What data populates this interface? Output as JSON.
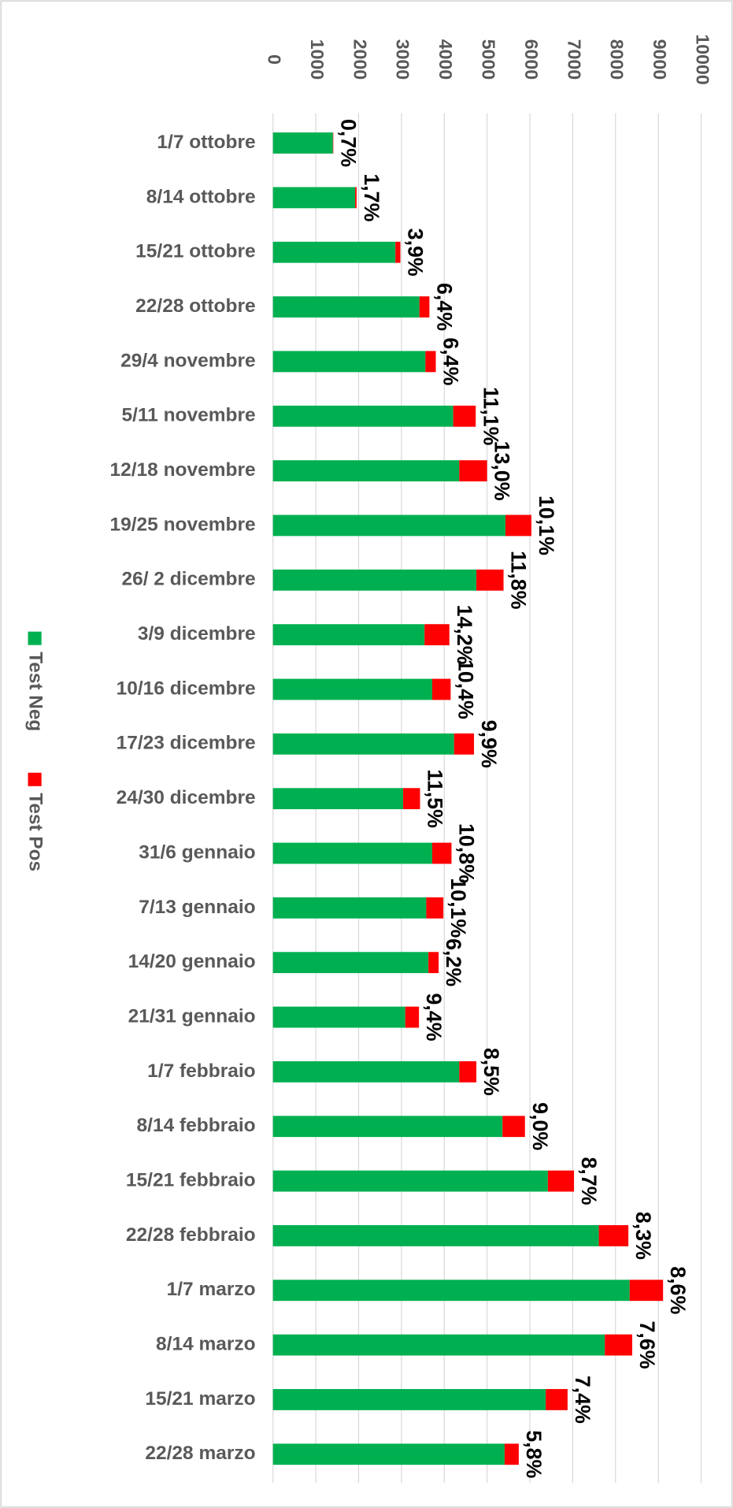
{
  "chart_data": {
    "type": "stacked_barh",
    "categories": [
      "1/7 ottobre",
      "8/14 ottobre",
      "15/21 ottobre",
      "22/28 ottobre",
      "29/4 novembre",
      "5/11 novembre",
      "12/18 novembre",
      "19/25 novembre",
      "26/ 2 dicembre",
      "3/9 dicembre",
      "10/16 dicembre",
      "17/23 dicembre",
      "24/30 dicembre",
      "31/6 gennaio",
      "7/13 gennaio",
      "14/20 gennaio",
      "21/31 gennaio",
      "1/7 febbraio",
      "8/14 febbraio",
      "15/21 febbraio",
      "22/28 febbraio",
      "1/7 marzo",
      "8/14 marzo",
      "15/21 marzo",
      "22/28 marzo"
    ],
    "series": [
      {
        "name": "Test Neg",
        "color": "#00b050",
        "values": [
          1400,
          1920,
          2860,
          3420,
          3560,
          4210,
          4350,
          5430,
          4750,
          3540,
          3720,
          4230,
          3040,
          3720,
          3580,
          3630,
          3090,
          4350,
          5360,
          6420,
          7610,
          8330,
          7750,
          6370,
          5410
        ]
      },
      {
        "name": "Test Pos",
        "color": "#ff0000",
        "values": [
          10,
          33,
          116,
          234,
          243,
          525,
          650,
          605,
          635,
          580,
          430,
          465,
          395,
          450,
          400,
          240,
          320,
          400,
          525,
          610,
          690,
          780,
          640,
          510,
          330
        ]
      }
    ],
    "positivity_labels": [
      "0,7%",
      "1,7%",
      "3,9%",
      "6,4%",
      "6,4%",
      "11,1%",
      "13,0%",
      "10,1%",
      "11,8%",
      "14,2%",
      "10,4%",
      "9,9%",
      "11,5%",
      "10,8%",
      "10,1%",
      "6,2%",
      "9,4%",
      "8,5%",
      "9,0%",
      "8,7%",
      "8,3%",
      "8,6%",
      "7,6%",
      "7,4%",
      "5,8%"
    ],
    "xlim": [
      0,
      10000
    ],
    "xticks": [
      0,
      1000,
      2000,
      3000,
      4000,
      5000,
      6000,
      7000,
      8000,
      9000,
      10000
    ],
    "grid": true,
    "legend": "left"
  }
}
